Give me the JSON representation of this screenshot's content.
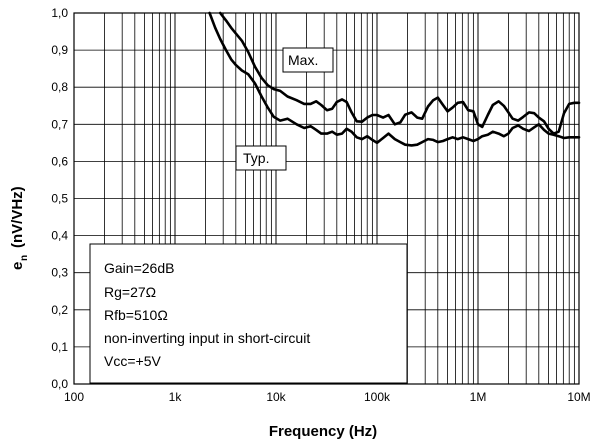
{
  "chart_data": {
    "type": "line",
    "title": "",
    "xlabel": "Frequency  (Hz)",
    "ylabel_main": "e",
    "ylabel_sub": "n",
    "ylabel_unit": "(nV/VHz)",
    "x_scale": "log",
    "xlim": [
      100,
      10000000
    ],
    "ylim": [
      0,
      1.0
    ],
    "grid": true,
    "x_ticks": [
      {
        "value": 100,
        "label": "100"
      },
      {
        "value": 1000,
        "label": "1k"
      },
      {
        "value": 10000,
        "label": "10k"
      },
      {
        "value": 100000,
        "label": "100k"
      },
      {
        "value": 1000000,
        "label": "1M"
      },
      {
        "value": 10000000,
        "label": "10M"
      }
    ],
    "y_ticks": [
      {
        "value": 0.0,
        "label": "0,0"
      },
      {
        "value": 0.1,
        "label": "0,1"
      },
      {
        "value": 0.2,
        "label": "0,2"
      },
      {
        "value": 0.3,
        "label": "0,3"
      },
      {
        "value": 0.4,
        "label": "0,4"
      },
      {
        "value": 0.5,
        "label": "0,5"
      },
      {
        "value": 0.6,
        "label": "0,6"
      },
      {
        "value": 0.7,
        "label": "0,7"
      },
      {
        "value": 0.8,
        "label": "0,8"
      },
      {
        "value": 0.9,
        "label": "0,9"
      },
      {
        "value": 1.0,
        "label": "1,0"
      }
    ],
    "series": [
      {
        "name": "Max.",
        "color": "#000000",
        "x": [
          2800,
          3200,
          3600,
          4000,
          4600,
          5300,
          6200,
          7200,
          8300,
          9500,
          11000,
          13000,
          16000,
          19000,
          22000,
          25000,
          28000,
          32000,
          36000,
          40000,
          45000,
          50000,
          56000,
          63000,
          71000,
          80000,
          90000,
          100000,
          115000,
          130000,
          150000,
          170000,
          190000,
          220000,
          250000,
          280000,
          320000,
          360000,
          400000,
          450000,
          500000,
          560000,
          630000,
          710000,
          800000,
          900000,
          1000000,
          1100000,
          1250000,
          1400000,
          1600000,
          1800000,
          2000000,
          2200000,
          2500000,
          2800000,
          3200000,
          3600000,
          4000000,
          4500000,
          5000000,
          5600000,
          6300000,
          7100000,
          8000000,
          9000000,
          10000000
        ],
        "values": [
          1.0,
          0.98,
          0.96,
          0.945,
          0.925,
          0.895,
          0.855,
          0.825,
          0.805,
          0.795,
          0.79,
          0.775,
          0.765,
          0.755,
          0.755,
          0.762,
          0.752,
          0.738,
          0.742,
          0.76,
          0.767,
          0.76,
          0.732,
          0.708,
          0.707,
          0.718,
          0.725,
          0.725,
          0.718,
          0.725,
          0.7,
          0.705,
          0.726,
          0.732,
          0.718,
          0.715,
          0.748,
          0.765,
          0.772,
          0.752,
          0.735,
          0.745,
          0.758,
          0.76,
          0.738,
          0.735,
          0.7,
          0.693,
          0.725,
          0.752,
          0.762,
          0.75,
          0.732,
          0.715,
          0.71,
          0.72,
          0.732,
          0.73,
          0.718,
          0.708,
          0.688,
          0.675,
          0.68,
          0.73,
          0.755,
          0.758,
          0.758
        ]
      },
      {
        "name": "Typ.",
        "color": "#000000",
        "x": [
          2200,
          2500,
          2800,
          3200,
          3600,
          4000,
          4600,
          5300,
          6200,
          7200,
          8300,
          9500,
          11000,
          13000,
          16000,
          19000,
          22000,
          25000,
          28000,
          32000,
          36000,
          40000,
          45000,
          50000,
          56000,
          63000,
          71000,
          80000,
          90000,
          100000,
          115000,
          130000,
          150000,
          170000,
          190000,
          220000,
          250000,
          280000,
          320000,
          360000,
          400000,
          450000,
          500000,
          560000,
          630000,
          710000,
          800000,
          900000,
          1000000,
          1100000,
          1250000,
          1400000,
          1600000,
          1800000,
          2000000,
          2200000,
          2500000,
          2800000,
          3200000,
          3600000,
          4000000,
          4500000,
          5000000,
          5600000,
          6300000,
          7100000,
          8000000,
          9000000,
          10000000
        ],
        "values": [
          1.0,
          0.96,
          0.93,
          0.9,
          0.875,
          0.86,
          0.845,
          0.835,
          0.81,
          0.775,
          0.745,
          0.72,
          0.71,
          0.715,
          0.7,
          0.69,
          0.695,
          0.685,
          0.675,
          0.675,
          0.68,
          0.672,
          0.675,
          0.688,
          0.68,
          0.665,
          0.66,
          0.668,
          0.658,
          0.65,
          0.663,
          0.675,
          0.66,
          0.652,
          0.645,
          0.643,
          0.645,
          0.652,
          0.66,
          0.658,
          0.652,
          0.655,
          0.66,
          0.665,
          0.66,
          0.665,
          0.66,
          0.655,
          0.66,
          0.668,
          0.672,
          0.68,
          0.675,
          0.668,
          0.675,
          0.69,
          0.697,
          0.688,
          0.682,
          0.692,
          0.7,
          0.685,
          0.675,
          0.672,
          0.668,
          0.663,
          0.665,
          0.665,
          0.665
        ]
      }
    ],
    "annotations": {
      "max_tag": "Max.",
      "typ_tag": "Typ."
    },
    "conditions": [
      "Gain=26dB",
      "Rg=27Ω",
      "Rfb=510Ω",
      "non-inverting input in short-circuit",
      "Vcc=+5V"
    ]
  }
}
